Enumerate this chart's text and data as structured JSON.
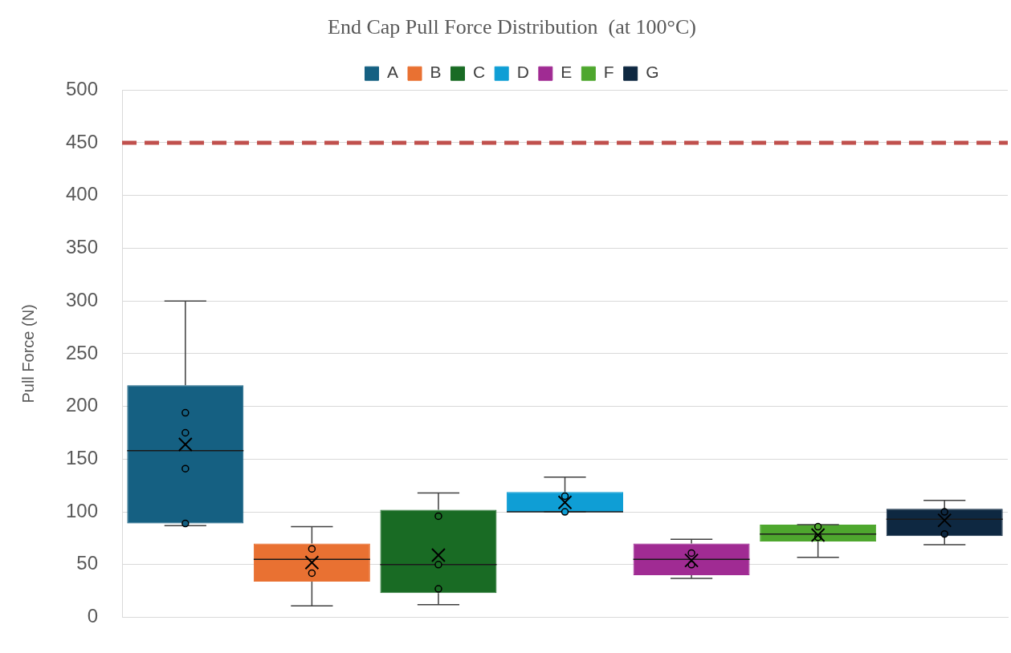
{
  "chart_data": {
    "type": "box",
    "title": "End Cap Pull Force Distribution  (at 100°C)",
    "ylabel": "Pull Force (N)",
    "categories": [
      null
    ],
    "series": [
      {
        "name": "A",
        "color": "#156082",
        "boxes": [
          {
            "low": 87,
            "q1": 89,
            "median": 158,
            "q3": 220,
            "high": 300,
            "mean": 164,
            "outliers": [
              194,
              175,
              141,
              89
            ]
          }
        ]
      },
      {
        "name": "B",
        "color": "#e97132",
        "boxes": [
          {
            "low": 11,
            "q1": 34,
            "median": 55,
            "q3": 70,
            "high": 86,
            "mean": 52,
            "outliers": [
              65,
              42
            ]
          }
        ]
      },
      {
        "name": "C",
        "color": "#196b24",
        "boxes": [
          {
            "low": 12,
            "q1": 23,
            "median": 50,
            "q3": 102,
            "high": 118,
            "mean": 59,
            "outliers": [
              96,
              50,
              27
            ]
          }
        ]
      },
      {
        "name": "D",
        "color": "#0f9ed5",
        "boxes": [
          {
            "low": 100,
            "q1": 100,
            "median": 100,
            "q3": 119,
            "high": 133,
            "mean": 109,
            "outliers": [
              115,
              100
            ]
          }
        ]
      },
      {
        "name": "E",
        "color": "#a02b93",
        "boxes": [
          {
            "low": 37,
            "q1": 40,
            "median": 55,
            "q3": 70,
            "high": 74,
            "mean": 54,
            "outliers": [
              61,
              50
            ]
          }
        ]
      },
      {
        "name": "F",
        "color": "#4ea72e",
        "boxes": [
          {
            "low": 57,
            "q1": 72,
            "median": 79,
            "q3": 88,
            "high": 88,
            "mean": 78,
            "outliers": [
              86,
              76
            ]
          }
        ]
      },
      {
        "name": "G",
        "color": "#0e2841",
        "boxes": [
          {
            "low": 69,
            "q1": 77,
            "median": 93,
            "q3": 103,
            "high": 111,
            "mean": 92,
            "outliers": [
              100,
              79
            ]
          }
        ]
      }
    ],
    "ylim": [
      0,
      500
    ],
    "yticks": [
      0,
      50,
      100,
      150,
      200,
      250,
      300,
      350,
      400,
      450,
      500
    ],
    "ref_lines": [
      {
        "axis": "y",
        "value": 450,
        "color": "#c0504d",
        "line_style": "dashed"
      }
    ],
    "grid": "y",
    "legend": "top",
    "tick_labels": "y"
  }
}
